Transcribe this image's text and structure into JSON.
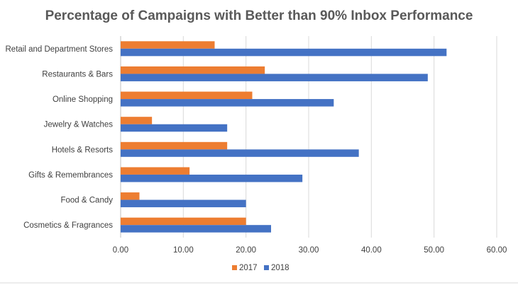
{
  "chart_data": {
    "type": "bar",
    "orientation": "horizontal",
    "title": "Percentage of Campaigns with Better than 90% Inbox Performance",
    "categories": [
      "Retail and Department Stores",
      "Restaurants & Bars",
      "Online Shopping",
      "Jewelry & Watches",
      "Hotels & Resorts",
      "Gifts & Remembrances",
      "Food & Candy",
      "Cosmetics & Fragrances"
    ],
    "series": [
      {
        "name": "2017",
        "color": "#ED7D31",
        "values": [
          15,
          23,
          21,
          5,
          17,
          11,
          3,
          20
        ]
      },
      {
        "name": "2018",
        "color": "#4472C4",
        "values": [
          52,
          49,
          34,
          17,
          38,
          29,
          20,
          24
        ]
      }
    ],
    "xlim": [
      0,
      60
    ],
    "xticks": [
      "0.00",
      "10.00",
      "20.00",
      "30.00",
      "40.00",
      "50.00",
      "60.00"
    ],
    "grid": true,
    "legend_position": "bottom"
  }
}
